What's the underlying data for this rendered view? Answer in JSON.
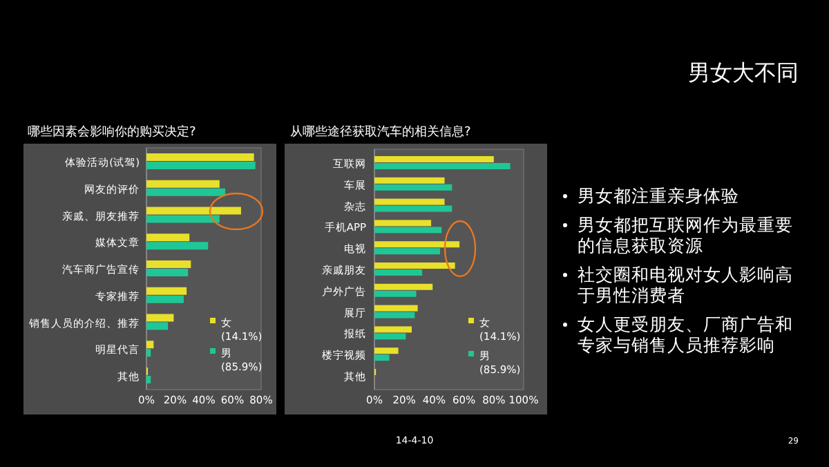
{
  "chart_data": [
    {
      "type": "bar",
      "orientation": "horizontal",
      "title": "哪些因素会影响你的购买决定?",
      "categories": [
        "体验活动(试驾)",
        "网友的评价",
        "亲戚、朋友推荐",
        "媒体文章",
        "汽车商广告宣传",
        "专家推荐",
        "销售人员的介绍、推荐",
        "明星代言",
        "其他"
      ],
      "series": [
        {
          "name": "女\n(14.1%)",
          "color": "#e8e02a",
          "values": [
            75,
            51,
            66,
            30,
            31,
            28,
            19,
            5,
            1
          ]
        },
        {
          "name": "男\n(85.9%)",
          "color": "#1fc796",
          "values": [
            76,
            55,
            51,
            43,
            29,
            26,
            15,
            3,
            3
          ]
        }
      ],
      "xlim": [
        0,
        80
      ],
      "xticks": [
        {
          "value": 0,
          "label": "0%"
        },
        {
          "value": 20,
          "label": "20%"
        },
        {
          "value": 40,
          "label": "40%"
        },
        {
          "value": 60,
          "label": "60%"
        },
        {
          "value": 80,
          "label": "80%"
        }
      ],
      "legend": "bottom right"
    },
    {
      "type": "bar",
      "orientation": "horizontal",
      "title": "从哪些途径获取汽车的相关信息?",
      "categories": [
        "互联网",
        "车展",
        "杂志",
        "手机APP",
        "电视",
        "亲戚朋友",
        "户外广告",
        "展厅",
        "报纸",
        "楼宇视频",
        "其他"
      ],
      "series": [
        {
          "name": "女\n(14.1%)",
          "color": "#e8e02a",
          "values": [
            80,
            47,
            47,
            38,
            57,
            54,
            39,
            29,
            25,
            16,
            1
          ]
        },
        {
          "name": "男\n(85.9%)",
          "color": "#1fc796",
          "values": [
            91,
            52,
            52,
            45,
            44,
            32,
            28,
            27,
            21,
            10,
            0
          ]
        }
      ],
      "xlim": [
        0,
        100
      ],
      "xticks": [
        {
          "value": 0,
          "label": "0%"
        },
        {
          "value": 20,
          "label": "20%"
        },
        {
          "value": 40,
          "label": "40%"
        },
        {
          "value": 60,
          "label": "60%"
        },
        {
          "value": 80,
          "label": "80%"
        },
        {
          "value": 100,
          "label": "100%"
        }
      ],
      "legend": "bottom right"
    },
    {
      "type": "other",
      "title": "男女大不同",
      "annotations": [
        "男女都注重亲身体验",
        "男女都把互联网作为最重要的信息获取资源",
        "社交圈和电视对女人影响高于男性消费者",
        "女人更受朋友、厂商广告和专家与销售人员推荐影响",
        "14-4-10",
        "29"
      ]
    }
  ]
}
